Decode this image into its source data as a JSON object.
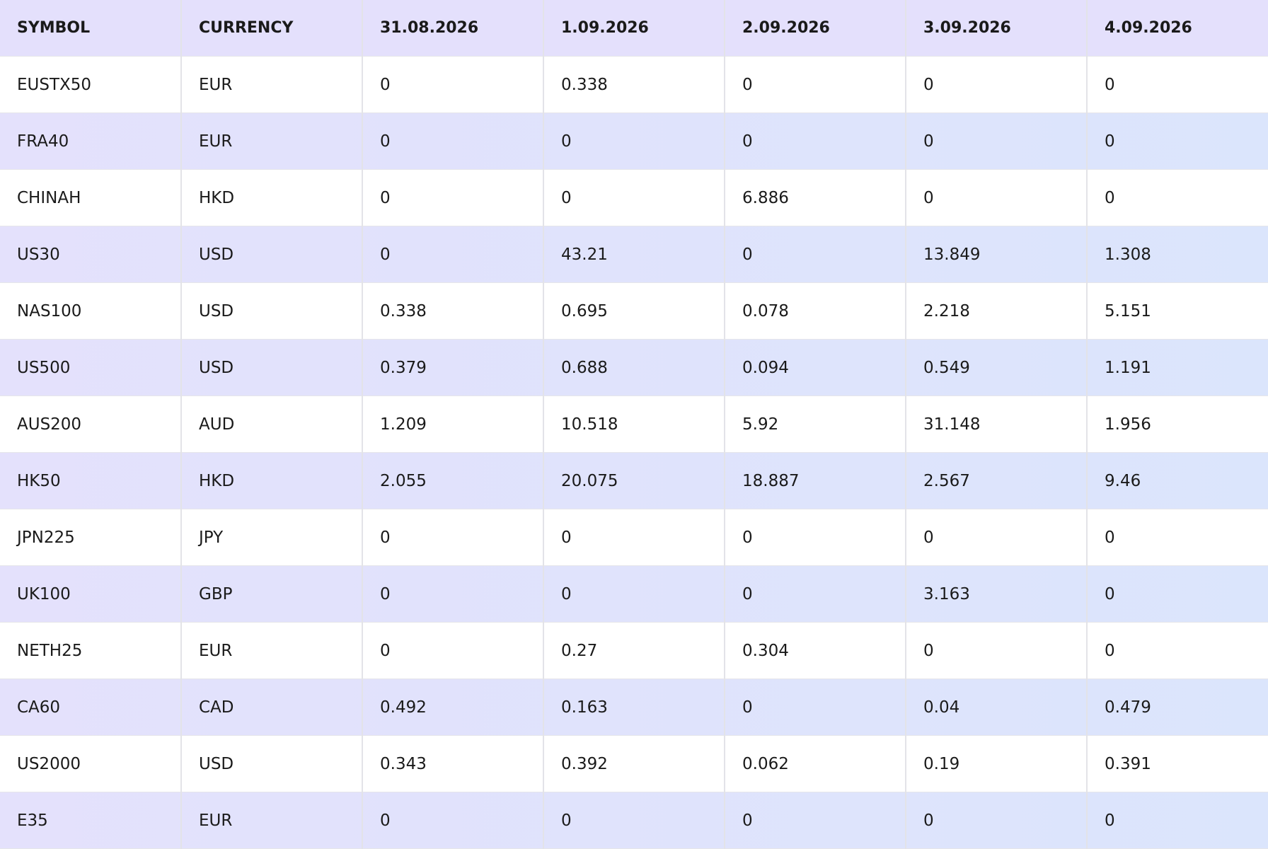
{
  "table": {
    "columns": [
      "SYMBOL",
      "CURRENCY",
      "31.08.2026",
      "1.09.2026",
      "2.09.2026",
      "3.09.2026",
      "4.09.2026"
    ],
    "rows": [
      [
        "EUSTX50",
        "EUR",
        "0",
        "0.338",
        "0",
        "0",
        "0"
      ],
      [
        "FRA40",
        "EUR",
        "0",
        "0",
        "0",
        "0",
        "0"
      ],
      [
        "CHINAH",
        "HKD",
        "0",
        "0",
        "6.886",
        "0",
        "0"
      ],
      [
        "US30",
        "USD",
        "0",
        "43.21",
        "0",
        "13.849",
        "1.308"
      ],
      [
        "NAS100",
        "USD",
        "0.338",
        "0.695",
        "0.078",
        "2.218",
        "5.151"
      ],
      [
        "US500",
        "USD",
        "0.379",
        "0.688",
        "0.094",
        "0.549",
        "1.191"
      ],
      [
        "AUS200",
        "AUD",
        "1.209",
        "10.518",
        "5.92",
        "31.148",
        "1.956"
      ],
      [
        "HK50",
        "HKD",
        "2.055",
        "20.075",
        "18.887",
        "2.567",
        "9.46"
      ],
      [
        "JPN225",
        "JPY",
        "0",
        "0",
        "0",
        "0",
        "0"
      ],
      [
        "UK100",
        "GBP",
        "0",
        "0",
        "0",
        "3.163",
        "0"
      ],
      [
        "NETH25",
        "EUR",
        "0",
        "0.27",
        "0.304",
        "0",
        "0"
      ],
      [
        "CA60",
        "CAD",
        "0.492",
        "0.163",
        "0",
        "0.04",
        "0.479"
      ],
      [
        "US2000",
        "USD",
        "0.343",
        "0.392",
        "0.062",
        "0.19",
        "0.391"
      ],
      [
        "E35",
        "EUR",
        "0",
        "0",
        "0",
        "0",
        "0"
      ]
    ]
  }
}
